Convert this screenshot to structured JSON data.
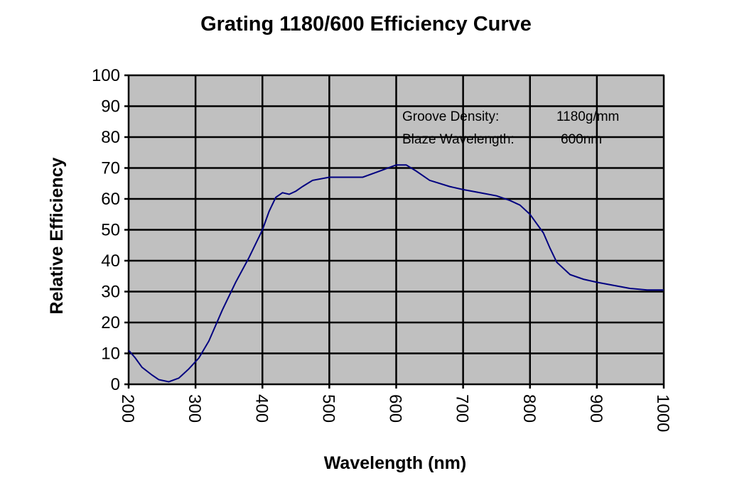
{
  "chart_data": {
    "type": "line",
    "title": "Grating 1180/600 Efficiency Curve",
    "xlabel": "Wavelength (nm)",
    "ylabel": "Relative Efficiency",
    "xlim": [
      200,
      1000
    ],
    "ylim": [
      0,
      100
    ],
    "xticks": [
      200,
      300,
      400,
      500,
      600,
      700,
      800,
      900,
      1000
    ],
    "yticks": [
      0,
      10,
      20,
      30,
      40,
      50,
      60,
      70,
      80,
      90,
      100
    ],
    "grid": true,
    "plot_background": "#c0c0c0",
    "line_color": "#000080",
    "annotations": [
      {
        "label": "Groove Density:",
        "value": "1180g/mm"
      },
      {
        "label": "Blaze Wavelength:",
        "value": "600nm"
      }
    ],
    "series": [
      {
        "x": [
          200,
          210,
          220,
          235,
          245,
          260,
          275,
          290,
          305,
          320,
          340,
          360,
          380,
          400,
          410,
          420,
          430,
          440,
          450,
          460,
          475,
          500,
          525,
          550,
          575,
          600,
          615,
          630,
          650,
          680,
          700,
          720,
          750,
          770,
          785,
          800,
          820,
          830,
          840,
          860,
          880,
          900,
          950,
          975,
          1000
        ],
        "y": [
          11,
          8.5,
          5.5,
          3,
          1.5,
          0.8,
          2,
          5,
          8.5,
          14,
          24,
          33,
          41,
          50,
          56,
          60.5,
          62,
          61.5,
          62.5,
          64,
          66,
          67,
          67,
          67,
          69,
          71,
          71,
          69,
          66,
          64,
          63,
          62.2,
          61,
          59.5,
          58,
          55,
          49,
          44,
          39.5,
          35.5,
          34,
          33,
          31,
          30.5,
          30.5
        ]
      }
    ]
  }
}
